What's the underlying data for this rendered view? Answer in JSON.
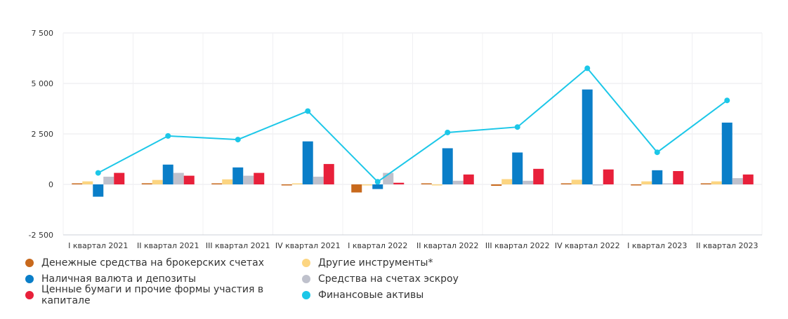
{
  "chart_data": {
    "type": "bar",
    "title": "",
    "xlabel": "",
    "ylabel": "",
    "ylim": [
      -2500,
      7500
    ],
    "yticks": [
      7500,
      5000,
      2500,
      0,
      -2500
    ],
    "ytick_labels": [
      "7 500",
      "5 000",
      "2 500",
      "0",
      "-2 500"
    ],
    "grid": true,
    "legend_position": "bottom",
    "categories": [
      "I квартал 2021",
      "II квартал 2021",
      "III квартал 2021",
      "IV квартал 2021",
      "I квартал 2022",
      "II квартал 2022",
      "III квартал 2022",
      "IV квартал 2022",
      "I квартал 2023",
      "II квартал 2023"
    ],
    "series": [
      {
        "name": "Денежные средства на брокерских счетах",
        "kind": "bar",
        "color": "#c8691c",
        "values": [
          20,
          55,
          15,
          -40,
          -400,
          20,
          -70,
          0,
          -40,
          20
        ]
      },
      {
        "name": "Другие инструменты*",
        "kind": "bar",
        "color": "#fcd581",
        "values": [
          150,
          220,
          250,
          10,
          -20,
          -20,
          260,
          230,
          150,
          150
        ]
      },
      {
        "name": "Наличная валюта и депозиты",
        "kind": "bar",
        "color": "#0a7ec8",
        "values": [
          -610,
          980,
          840,
          2130,
          -230,
          1790,
          1580,
          4700,
          700,
          3060
        ]
      },
      {
        "name": "Средства на счетах эскроу",
        "kind": "bar",
        "color": "#bfc1cc",
        "values": [
          380,
          570,
          430,
          380,
          570,
          180,
          180,
          -20,
          10,
          310
        ]
      },
      {
        "name": "Ценные бумаги и прочие формы участия в капитале",
        "kind": "bar",
        "color": "#e8203a",
        "values": [
          570,
          430,
          570,
          1010,
          80,
          490,
          770,
          740,
          660,
          490
        ]
      },
      {
        "name": "Финансовые активы",
        "kind": "line",
        "color": "#1cc7e8",
        "values": [
          570,
          2400,
          2220,
          3630,
          130,
          2570,
          2840,
          5750,
          1590,
          4160
        ]
      }
    ]
  },
  "legend_order": [
    0,
    1,
    2,
    3,
    4,
    5
  ]
}
